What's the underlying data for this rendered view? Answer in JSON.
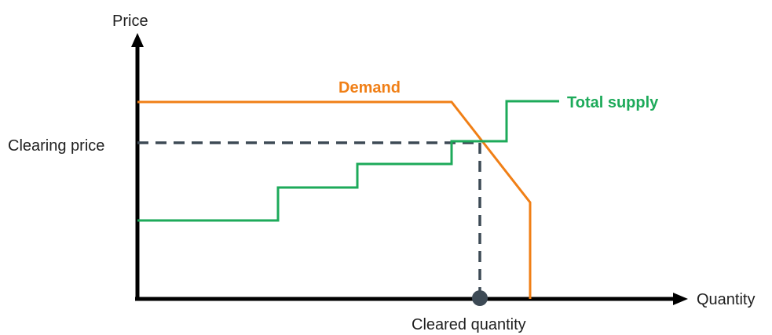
{
  "axes": {
    "y_label": "Price",
    "x_label": "Quantity"
  },
  "annotations": {
    "clearing_price": "Clearing price",
    "cleared_quantity": "Cleared quantity"
  },
  "series": {
    "demand": {
      "name": "Demand",
      "color": "#f07f16"
    },
    "supply": {
      "name": "Total supply",
      "color": "#1daa5a"
    }
  },
  "colors": {
    "axis": "#000000",
    "guide": "#3d4a55",
    "point": "#3d4a55"
  }
}
